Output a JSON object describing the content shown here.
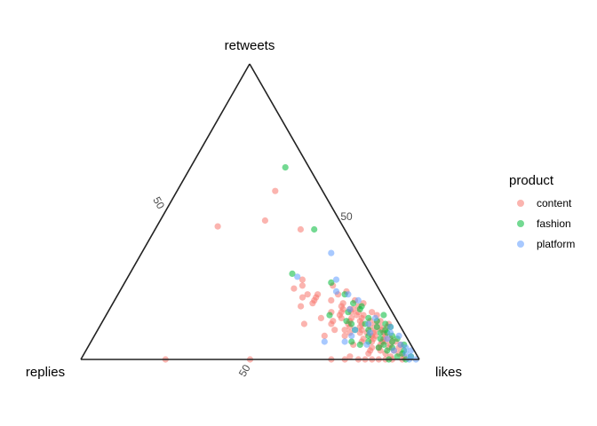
{
  "chart_data": {
    "type": "ternary-scatter",
    "axes": {
      "top": "retweets",
      "left": "replies",
      "right": "likes"
    },
    "tick_labels": {
      "retweets": "50",
      "replies": "50",
      "likes": "50"
    },
    "grid": false,
    "legend": {
      "title": "product",
      "position": "right",
      "entries": [
        {
          "name": "content",
          "color": "#F8766D"
        },
        {
          "name": "fashion",
          "color": "#00BA38"
        },
        {
          "name": "platform",
          "color": "#619CFF"
        }
      ]
    },
    "point_alpha": 0.55,
    "note": "each point: [retweets %, replies %, likes %]",
    "series": [
      {
        "name": "content",
        "points": [
          [
            57,
            14,
            29
          ],
          [
            47,
            22,
            31
          ],
          [
            45,
            37,
            18
          ],
          [
            44,
            13,
            43
          ],
          [
            24,
            25,
            51
          ],
          [
            27,
            21,
            52
          ],
          [
            25,
            22,
            53
          ],
          [
            22,
            22,
            56
          ],
          [
            22,
            19,
            59
          ],
          [
            21,
            24,
            55
          ],
          [
            20,
            21,
            59
          ],
          [
            19,
            22,
            59
          ],
          [
            18,
            26,
            56
          ],
          [
            17,
            12,
            71
          ],
          [
            16,
            10,
            74
          ],
          [
            15,
            11,
            74
          ],
          [
            14,
            22,
            64
          ],
          [
            13,
            19,
            68
          ],
          [
            12,
            28,
            60
          ],
          [
            12,
            15,
            73
          ],
          [
            11,
            12,
            77
          ],
          [
            10,
            17,
            73
          ],
          [
            9,
            13,
            78
          ],
          [
            8,
            24,
            68
          ],
          [
            8,
            10,
            82
          ],
          [
            7,
            13,
            80
          ],
          [
            6,
            8,
            86
          ],
          [
            5,
            17,
            78
          ],
          [
            4,
            10,
            86
          ],
          [
            3,
            6,
            91
          ],
          [
            2,
            9,
            89
          ],
          [
            1,
            4,
            95
          ],
          [
            0,
            75,
            25
          ],
          [
            0,
            50,
            50
          ],
          [
            0,
            26,
            74
          ],
          [
            0,
            18,
            82
          ],
          [
            0,
            12,
            88
          ],
          [
            0,
            8,
            92
          ],
          [
            0,
            5,
            95
          ],
          [
            18,
            14,
            68
          ],
          [
            17,
            11,
            72
          ],
          [
            16,
            12,
            72
          ],
          [
            15,
            9,
            76
          ],
          [
            14,
            13,
            73
          ],
          [
            14,
            10,
            76
          ],
          [
            13,
            8,
            79
          ],
          [
            12,
            11,
            77
          ],
          [
            12,
            7,
            81
          ],
          [
            11,
            9,
            80
          ],
          [
            10,
            8,
            82
          ],
          [
            10,
            12,
            78
          ],
          [
            9,
            6,
            85
          ],
          [
            8,
            9,
            83
          ],
          [
            8,
            6,
            86
          ],
          [
            7,
            10,
            83
          ],
          [
            7,
            5,
            88
          ],
          [
            6,
            11,
            83
          ],
          [
            6,
            4,
            90
          ],
          [
            5,
            9,
            86
          ],
          [
            5,
            6,
            89
          ],
          [
            4,
            7,
            89
          ],
          [
            3,
            10,
            87
          ],
          [
            2,
            5,
            93
          ],
          [
            20,
            16,
            64
          ],
          [
            19,
            13,
            68
          ],
          [
            18,
            9,
            73
          ],
          [
            17,
            14,
            69
          ],
          [
            16,
            15,
            69
          ],
          [
            15,
            16,
            69
          ],
          [
            13,
            14,
            73
          ],
          [
            11,
            15,
            74
          ],
          [
            9,
            16,
            75
          ],
          [
            8,
            18,
            74
          ],
          [
            6,
            14,
            80
          ],
          [
            4,
            12,
            84
          ],
          [
            3,
            13,
            84
          ],
          [
            22,
            13,
            65
          ],
          [
            23,
            10,
            67
          ],
          [
            25,
            13,
            62
          ],
          [
            20,
            9,
            71
          ],
          [
            13,
            5,
            82
          ],
          [
            11,
            4,
            85
          ],
          [
            21,
            20,
            59
          ],
          [
            10,
            20,
            70
          ],
          [
            10,
            6,
            84
          ],
          [
            9,
            9,
            82
          ],
          [
            7,
            7,
            86
          ],
          [
            12,
            3,
            85
          ],
          [
            15,
            5,
            80
          ],
          [
            16,
            6,
            78
          ],
          [
            19,
            7,
            74
          ],
          [
            2,
            14,
            84
          ],
          [
            1,
            20,
            79
          ],
          [
            0,
            14,
            86
          ],
          [
            0,
            10,
            90
          ],
          [
            0,
            16,
            84
          ],
          [
            0,
            22,
            78
          ],
          [
            16,
            18,
            66
          ],
          [
            14,
            16,
            70
          ],
          [
            12,
            20,
            68
          ],
          [
            13,
            11,
            76
          ],
          [
            11,
            6,
            83
          ],
          [
            9,
            11,
            80
          ],
          [
            6,
            7,
            87
          ],
          [
            5,
            3,
            92
          ],
          [
            4,
            4,
            92
          ],
          [
            1,
            8,
            91
          ]
        ]
      },
      {
        "name": "fashion",
        "points": [
          [
            65,
            7,
            28
          ],
          [
            44,
            9,
            47
          ],
          [
            29,
            23,
            48
          ],
          [
            26,
            13,
            61
          ],
          [
            22,
            11,
            67
          ],
          [
            19,
            10,
            71
          ],
          [
            18,
            8,
            74
          ],
          [
            17,
            9,
            74
          ],
          [
            16,
            13,
            71
          ],
          [
            15,
            3,
            82
          ],
          [
            14,
            8,
            78
          ],
          [
            13,
            6,
            81
          ],
          [
            12,
            10,
            78
          ],
          [
            11,
            7,
            82
          ],
          [
            10,
            14,
            76
          ],
          [
            10,
            5,
            85
          ],
          [
            9,
            7,
            84
          ],
          [
            8,
            11,
            81
          ],
          [
            8,
            4,
            88
          ],
          [
            7,
            8,
            85
          ],
          [
            7,
            3,
            90
          ],
          [
            6,
            12,
            82
          ],
          [
            6,
            5,
            89
          ],
          [
            5,
            8,
            87
          ],
          [
            5,
            2,
            93
          ],
          [
            4,
            6,
            90
          ],
          [
            3,
            8,
            89
          ],
          [
            3,
            3,
            94
          ],
          [
            2,
            4,
            94
          ],
          [
            1,
            2,
            97
          ],
          [
            1,
            6,
            93
          ],
          [
            15,
            19,
            66
          ],
          [
            13,
            15,
            72
          ],
          [
            12,
            14,
            74
          ],
          [
            10,
            10,
            80
          ],
          [
            6,
            17,
            77
          ],
          [
            5,
            15,
            80
          ],
          [
            9,
            5,
            86
          ],
          [
            4,
            10,
            86
          ],
          [
            0,
            9,
            91
          ],
          [
            0,
            4,
            96
          ],
          [
            12,
            4,
            84
          ],
          [
            11,
            3,
            86
          ]
        ]
      },
      {
        "name": "platform",
        "points": [
          [
            36,
            8,
            56
          ],
          [
            28,
            22,
            50
          ],
          [
            27,
            11,
            62
          ],
          [
            23,
            13,
            64
          ],
          [
            22,
            10,
            68
          ],
          [
            20,
            8,
            72
          ],
          [
            17,
            12,
            71
          ],
          [
            14,
            6,
            80
          ],
          [
            12,
            9,
            79
          ],
          [
            11,
            3,
            86
          ],
          [
            10,
            14,
            76
          ],
          [
            9,
            4,
            87
          ],
          [
            8,
            16,
            76
          ],
          [
            7,
            6,
            87
          ],
          [
            6,
            25,
            69
          ],
          [
            6,
            19,
            75
          ],
          [
            5,
            13,
            82
          ],
          [
            5,
            3,
            92
          ],
          [
            4,
            2,
            94
          ],
          [
            3,
            6,
            91
          ],
          [
            3,
            1,
            96
          ],
          [
            2,
            3,
            95
          ],
          [
            1,
            2,
            97
          ],
          [
            0,
            3,
            97
          ],
          [
            0,
            1,
            99
          ],
          [
            8,
            2,
            90
          ],
          [
            9,
            10,
            81
          ]
        ]
      }
    ]
  }
}
